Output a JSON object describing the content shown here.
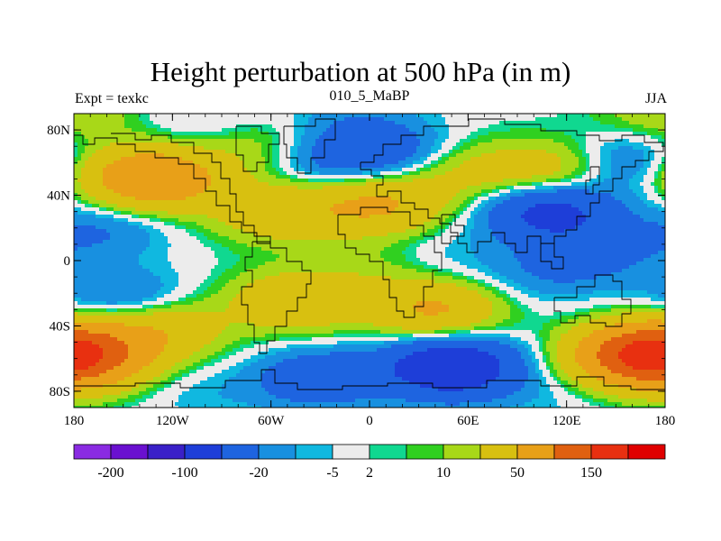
{
  "chart_data": {
    "type": "heatmap",
    "title": "Height perturbation at 500 hPa (in m)",
    "subtitle_left": "Expt = texkc",
    "subtitle_center": "010_5_MaBP",
    "subtitle_right": "JJA",
    "xlim": [
      -180,
      180
    ],
    "ylim": [
      -90,
      90
    ],
    "x_ticks": [
      {
        "value": -180,
        "label": "180"
      },
      {
        "value": -120,
        "label": "120W"
      },
      {
        "value": -60,
        "label": "60W"
      },
      {
        "value": 0,
        "label": "0"
      },
      {
        "value": 60,
        "label": "60E"
      },
      {
        "value": 120,
        "label": "120E"
      },
      {
        "value": 180,
        "label": "180"
      }
    ],
    "y_ticks": [
      {
        "value": 80,
        "label": "80N"
      },
      {
        "value": 40,
        "label": "40N"
      },
      {
        "value": 0,
        "label": "0"
      },
      {
        "value": -40,
        "label": "40S"
      },
      {
        "value": -80,
        "label": "80S"
      }
    ],
    "colorbar": {
      "colors": [
        "#8a2be2",
        "#6a10d0",
        "#3a20c8",
        "#1e3ed8",
        "#1e64e0",
        "#1890e0",
        "#10b8e0",
        "#ececec",
        "#10d890",
        "#30d020",
        "#a8d818",
        "#d8c010",
        "#e8a018",
        "#e06010",
        "#e83010",
        "#e00000"
      ],
      "labels": [
        {
          "after_box": 1,
          "text": "-200"
        },
        {
          "after_box": 3,
          "text": "-100"
        },
        {
          "after_box": 5,
          "text": "-20"
        },
        {
          "after_box": 7,
          "text": "-5"
        },
        {
          "after_box": 8,
          "text": "2"
        },
        {
          "after_box": 10,
          "text": "10"
        },
        {
          "after_box": 12,
          "text": "50"
        },
        {
          "after_box": 14,
          "text": "150"
        }
      ]
    },
    "centers": [
      {
        "lon": -130,
        "lat": 50,
        "value": 85
      },
      {
        "lon": -55,
        "lat": 30,
        "value": 40
      },
      {
        "lon": 5,
        "lat": 35,
        "value": 55
      },
      {
        "lon": -45,
        "lat": -25,
        "value": 45
      },
      {
        "lon": 40,
        "lat": -30,
        "value": 55
      },
      {
        "lon": -130,
        "lat": -42,
        "value": 45
      },
      {
        "lon": -175,
        "lat": -58,
        "value": 90
      },
      {
        "lon": 165,
        "lat": -58,
        "value": 120
      },
      {
        "lon": -70,
        "lat": 70,
        "value": 20
      },
      {
        "lon": 55,
        "lat": 55,
        "value": 25
      },
      {
        "lon": 110,
        "lat": 55,
        "value": 35
      },
      {
        "lon": -160,
        "lat": 55,
        "value": 20
      },
      {
        "lon": 5,
        "lat": -5,
        "value": 12
      },
      {
        "lon": -175,
        "lat": 90,
        "value": 8
      },
      {
        "lon": 175,
        "lat": 90,
        "value": 12
      },
      {
        "lon": 110,
        "lat": 30,
        "value": -65
      },
      {
        "lon": 15,
        "lat": 65,
        "value": -30
      },
      {
        "lon": 160,
        "lat": 60,
        "value": -30
      },
      {
        "lon": -25,
        "lat": 60,
        "value": -25
      },
      {
        "lon": -160,
        "lat": 20,
        "value": -20
      },
      {
        "lon": -150,
        "lat": -25,
        "value": -30
      },
      {
        "lon": 50,
        "lat": -65,
        "value": -90
      },
      {
        "lon": -30,
        "lat": -72,
        "value": -40
      },
      {
        "lon": 130,
        "lat": 0,
        "value": -18
      },
      {
        "lon": 40,
        "lat": 0,
        "value": -10
      },
      {
        "lon": 160,
        "lat": 8,
        "value": -8
      },
      {
        "lon": -100,
        "lat": 80,
        "value": -12
      },
      {
        "lon": -10,
        "lat": 85,
        "value": -15
      },
      {
        "lon": -100,
        "lat": -82,
        "value": -8
      },
      {
        "lon": 110,
        "lat": -85,
        "value": -6
      },
      {
        "lon": 100,
        "lat": -10,
        "value": -12
      }
    ]
  }
}
